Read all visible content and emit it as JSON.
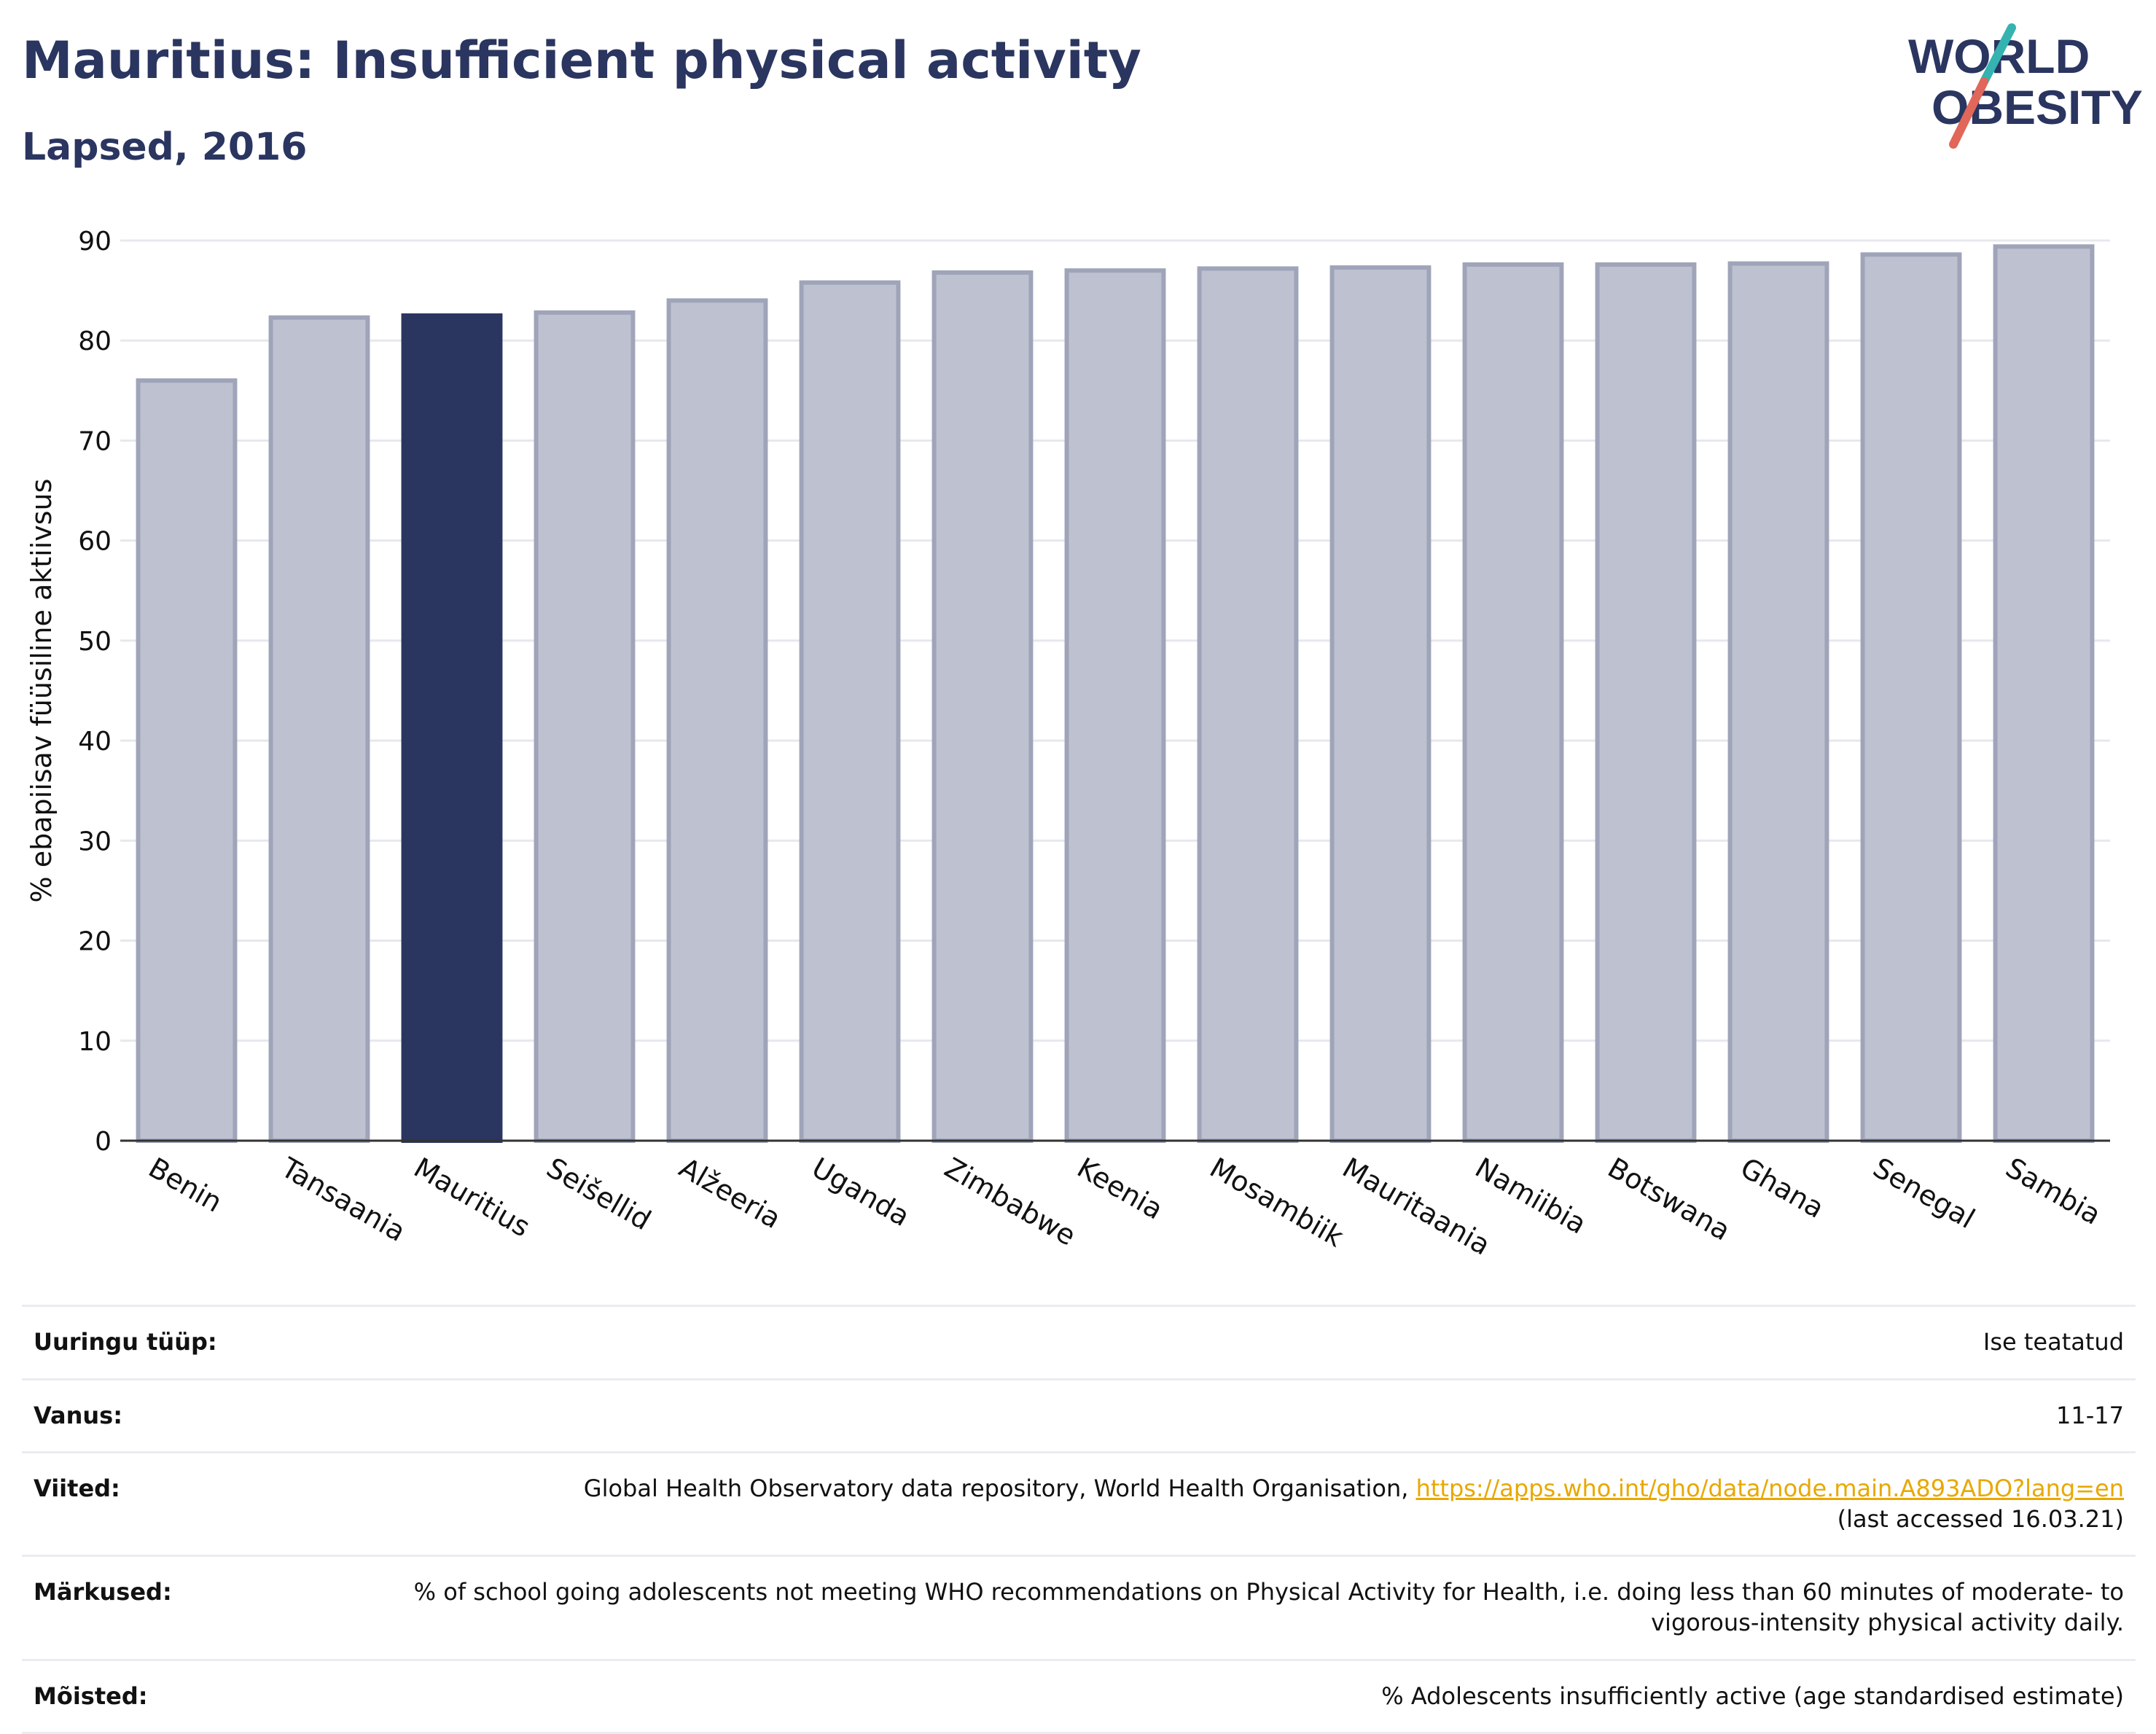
{
  "header": {
    "title": "Mauritius: Insufficient physical activity",
    "subtitle": "Lapsed, 2016"
  },
  "logo": {
    "line1": "WORLD",
    "line2": "OBESITY",
    "colors": {
      "text": "#2a3560",
      "slash_teal": "#35b3b0",
      "slash_red": "#e0675a"
    }
  },
  "chart_data": {
    "type": "bar",
    "title": "",
    "xlabel": "",
    "ylabel": "% ebapiisav füüsiline aktiivsus",
    "ylim": [
      0,
      90
    ],
    "yticks": [
      0,
      10,
      20,
      30,
      40,
      50,
      60,
      70,
      80,
      90
    ],
    "grid": true,
    "categories": [
      "Benin",
      "Tansaania",
      "Mauritius",
      "Seišellid",
      "Alžeeria",
      "Uganda",
      "Zimbabwe",
      "Keenia",
      "Mosambiik",
      "Mauritaania",
      "Namiibia",
      "Botswana",
      "Ghana",
      "Senegal",
      "Sambia"
    ],
    "values": [
      76.0,
      82.3,
      82.5,
      82.8,
      84.0,
      85.8,
      86.8,
      87.0,
      87.2,
      87.3,
      87.6,
      87.6,
      87.7,
      88.6,
      89.4
    ],
    "highlight": "Mauritius",
    "colors": {
      "bar": "#bec2d0",
      "bar_edge": "#9fa4b9",
      "highlight": "#2a3560",
      "axis": "#333333",
      "grid": "#e6e8ee"
    }
  },
  "details": [
    {
      "key": "Uuringu tüüp:",
      "value": "Ise teatatud"
    },
    {
      "key": "Vanus:",
      "value": "11-17"
    },
    {
      "key": "Viited:",
      "value": "Global Health Observatory data repository, World Health Organisation, ",
      "link": "https://apps.who.int/gho/data/node.main.A893ADO?lang=en",
      "value2": "(last accessed 16.03.21)"
    },
    {
      "key": "Märkused:",
      "value": "% of school going adolescents not meeting WHO recommendations on Physical Activity for Health, i.e. doing less than 60 minutes of moderate- to vigorous-intensity physical activity daily."
    },
    {
      "key": "Mõisted:",
      "value": "% Adolescents insufficiently active (age standardised estimate)"
    }
  ]
}
